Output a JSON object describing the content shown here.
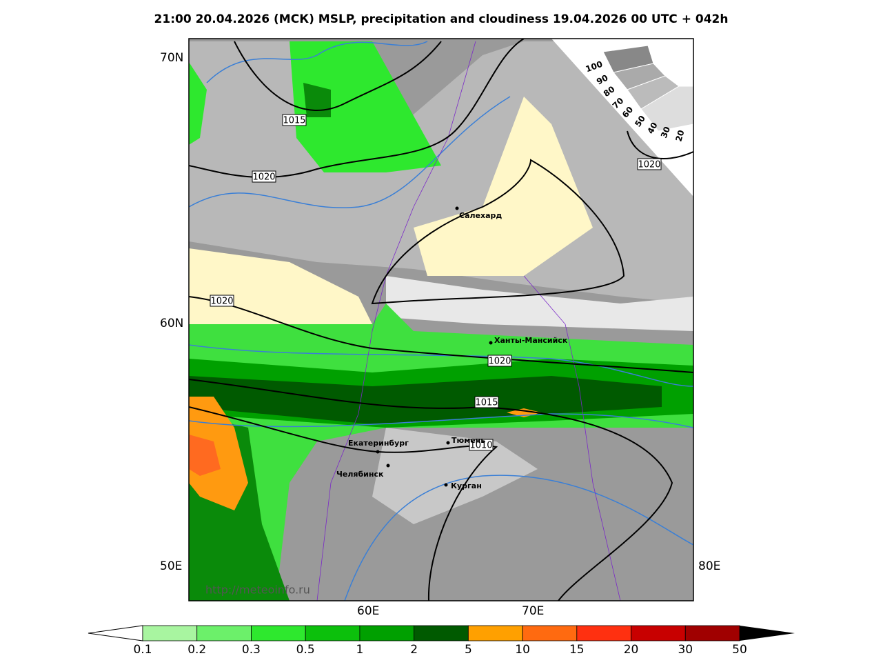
{
  "title": "21:00 20.04.2026 (МСК) MSLP, precipitation and cloudiness 19.04.2026 00 UTC + 042h",
  "map": {
    "lat_labels": [
      "70N",
      "60N"
    ],
    "lon_labels": [
      "50E",
      "60E",
      "70E",
      "80E"
    ],
    "isobar_labels": [
      "1015",
      "1020",
      "1020",
      "1020",
      "1020",
      "1015",
      "1010"
    ],
    "cities": [
      "Салехард",
      "Ханты-Мансийск",
      "Екатеринбург",
      "Тюмень",
      "Челябинск",
      "Курган"
    ],
    "watermark": "http://meteoinfo.ru"
  },
  "cloudiness_scale": [
    100,
    90,
    80,
    70,
    60,
    50,
    40,
    30,
    20
  ],
  "precip_colorbar": {
    "labels": [
      0.1,
      0.2,
      0.3,
      0.5,
      1,
      2,
      5,
      10,
      15,
      20,
      30,
      50
    ],
    "colors": [
      "#a8f5a0",
      "#6cf06a",
      "#2ee82e",
      "#0cc00c",
      "#00a000",
      "#005a00",
      "#ffa000",
      "#ff6a10",
      "#ff3010",
      "#c80000",
      "#a00000"
    ]
  }
}
